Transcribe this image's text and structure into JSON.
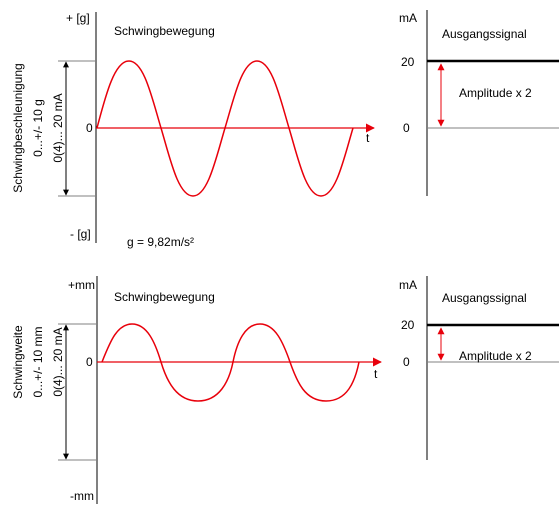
{
  "panels": [
    {
      "axis_top": "+ [g]",
      "axis_bottom": "- [g]",
      "zero": "0",
      "t": "t",
      "title_left": "Schwingbewegung",
      "rot_label_1": "Schwingbeschleunigung",
      "rot_label_2": "0...+/- 10 g",
      "rot_label_3": "0(4)... 20 mA",
      "unit_right": "mA",
      "title_right": "Ausgangssignal",
      "val_20": "20",
      "val_0": "0",
      "amplitude": "Amplitude x 2",
      "note": "g = 9,82m/s²"
    },
    {
      "axis_top": "+mm",
      "axis_bottom": "-mm",
      "zero": "0",
      "t": "t",
      "title_left": "Schwingbewegung",
      "rot_label_1": "Schwingweite",
      "rot_label_2": "0...+/- 10 mm",
      "rot_label_3": "0(4)... 20 mA",
      "unit_right": "mA",
      "title_right": "Ausgangssignal",
      "val_20": "20",
      "val_0": "0",
      "amplitude": "Amplitude x 2"
    }
  ],
  "colors": {
    "signal": "#e8000b",
    "axis": "#000000",
    "gridline": "#808080"
  }
}
